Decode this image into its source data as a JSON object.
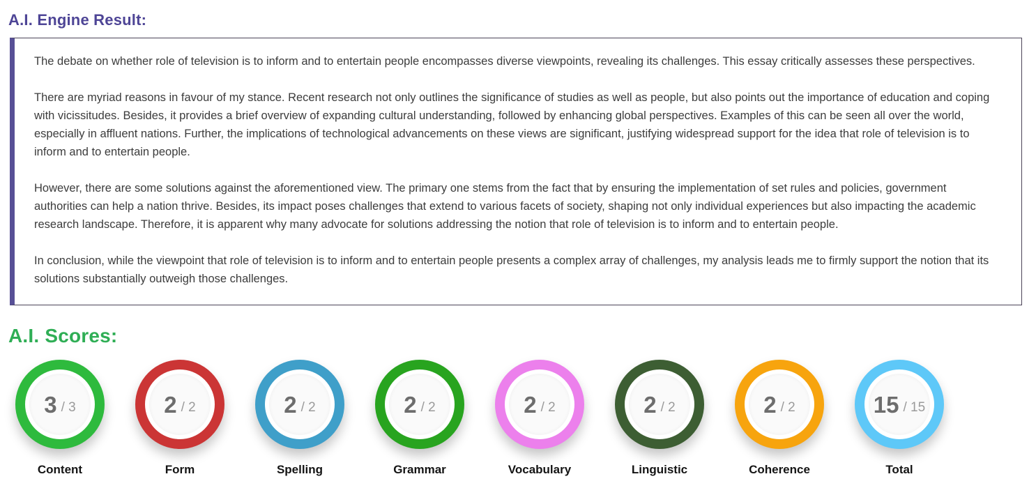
{
  "headings": {
    "engine_result": "A.I. Engine Result:",
    "scores": "A.I. Scores:"
  },
  "essay": {
    "paragraphs": [
      "The debate on whether role of television is to inform and to entertain people encompasses diverse viewpoints, revealing its challenges. This essay critically assesses these perspectives.",
      "There are myriad reasons in favour of my stance. Recent research not only outlines the significance of studies as well as people, but also points out the importance of education and coping with vicissitudes. Besides, it provides a brief overview of expanding cultural understanding, followed by enhancing global perspectives. Examples of this can be seen all over the world, especially in affluent nations. Further, the implications of technological advancements on these views are significant, justifying widespread support for the idea that role of television is to inform and to entertain people.",
      "However, there are some solutions against the aforementioned view. The primary one stems from the fact that by ensuring the implementation of set rules and policies, government authorities can help a nation thrive. Besides, its impact poses challenges that extend to various facets of society, shaping not only individual experiences but also impacting the academic research landscape. Therefore, it is apparent why many advocate for solutions addressing the notion that role of television is to inform and to entertain people.",
      "In conclusion, while the viewpoint that role of television is to inform and to entertain people presents a complex array of challenges, my analysis leads me to firmly support the notion that its solutions substantially outweigh those challenges."
    ]
  },
  "scores": [
    {
      "label": "Content",
      "score": "3",
      "max": "3",
      "color": "#2eba3d"
    },
    {
      "label": "Form",
      "score": "2",
      "max": "2",
      "color": "#cb3535"
    },
    {
      "label": "Spelling",
      "score": "2",
      "max": "2",
      "color": "#3f9fc9"
    },
    {
      "label": "Grammar",
      "score": "2",
      "max": "2",
      "color": "#28a41f"
    },
    {
      "label": "Vocabulary",
      "score": "2",
      "max": "2",
      "color": "#ec80ec"
    },
    {
      "label": "Linguistic",
      "score": "2",
      "max": "2",
      "color": "#3d5e33"
    },
    {
      "label": "Coherence",
      "score": "2",
      "max": "2",
      "color": "#f7a40e"
    },
    {
      "label": "Total",
      "score": "15",
      "max": "15",
      "color": "#5ec8f8"
    }
  ],
  "colors": {
    "engine_heading": "#4e4596",
    "scores_heading": "#2fae55",
    "essay_border": "#4b4358",
    "essay_accent_bar": "#575096",
    "essay_text": "#3c3c3c",
    "score_value_text": "#6d6d6d",
    "score_max_text": "#9a9a9a",
    "score_label_text": "#141414"
  }
}
